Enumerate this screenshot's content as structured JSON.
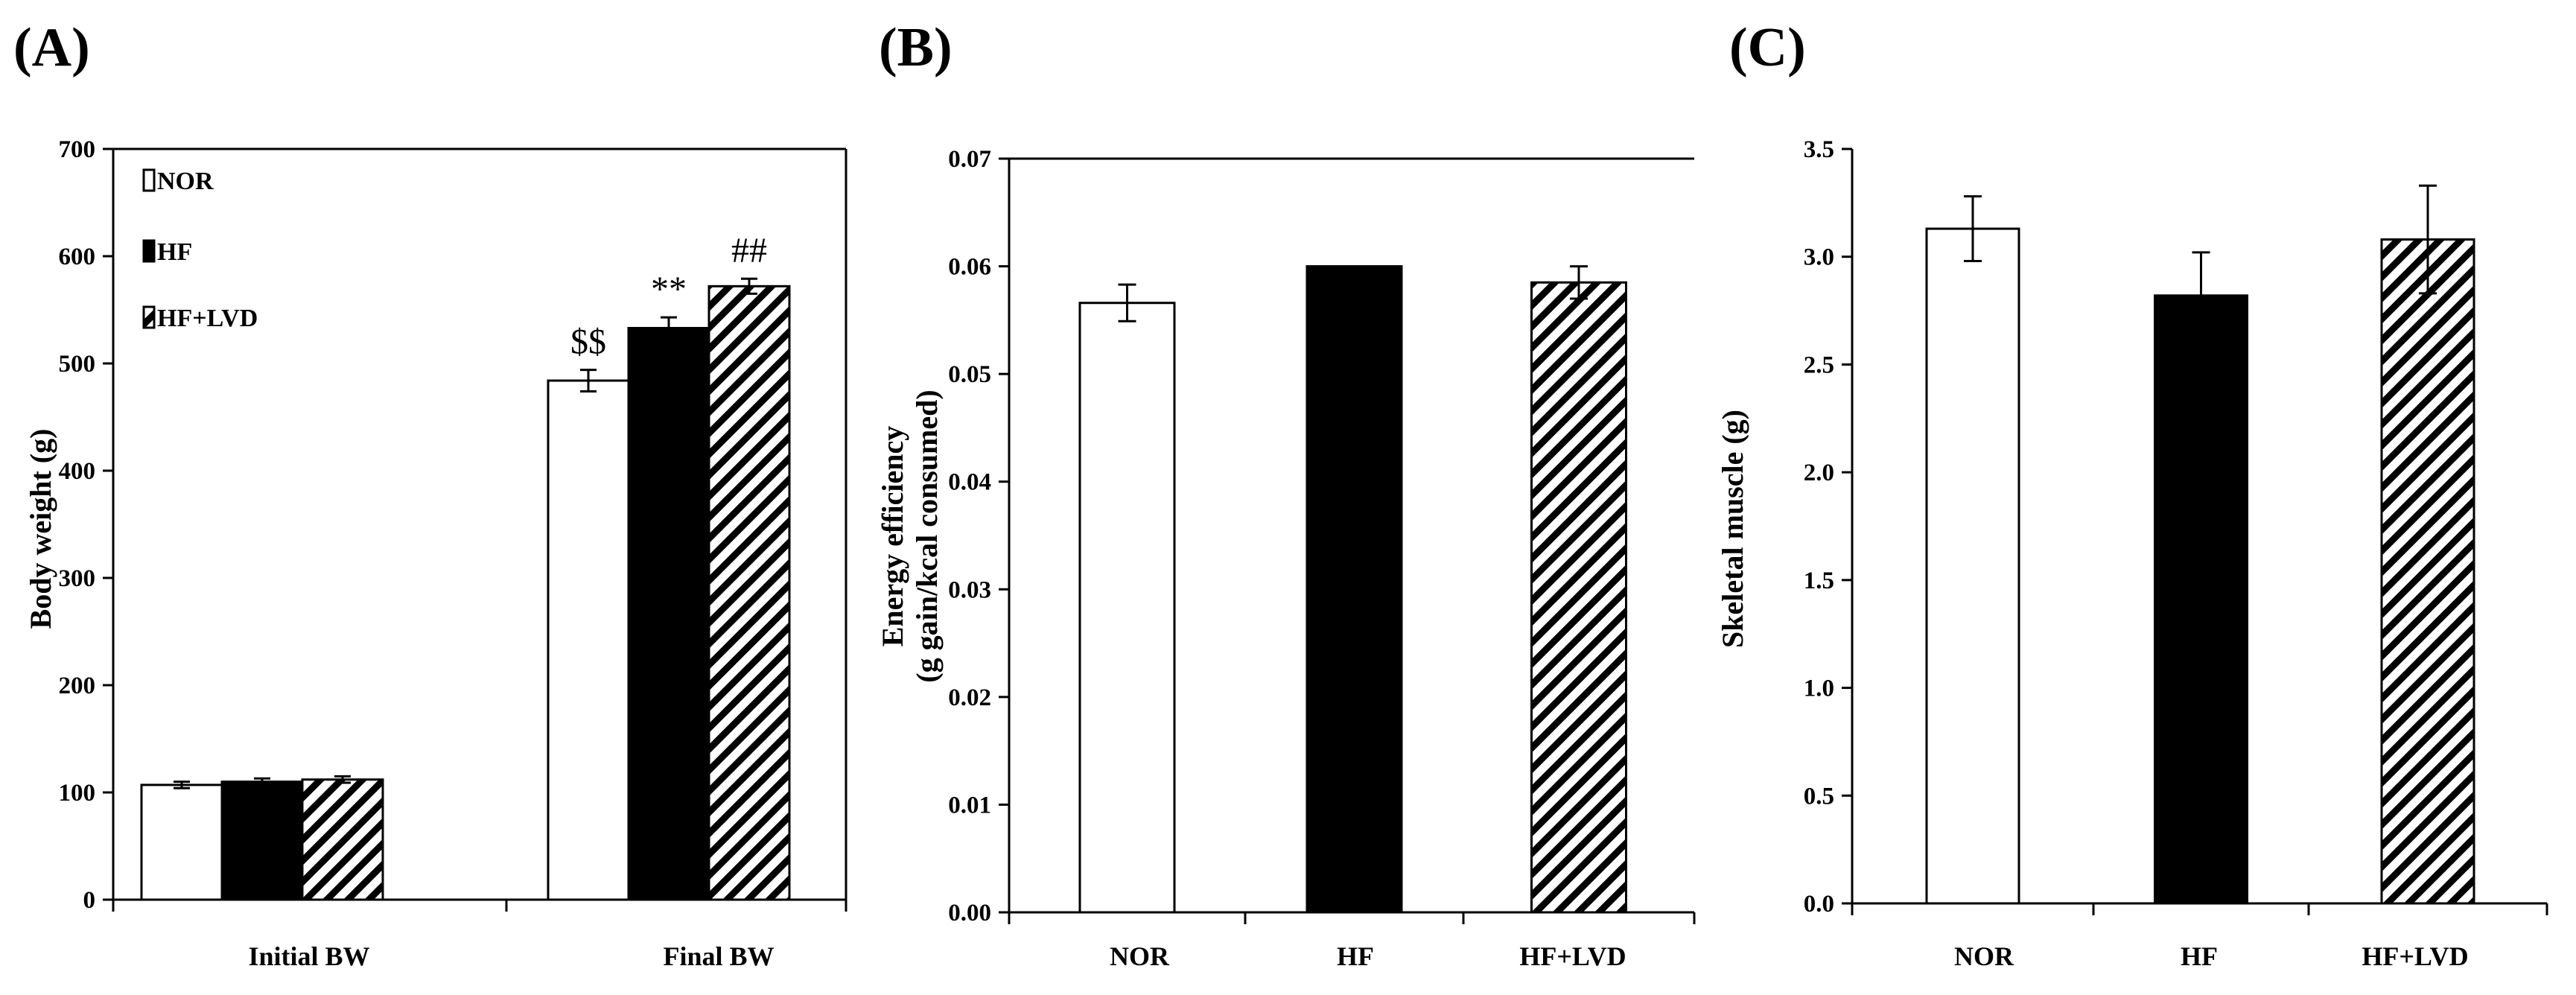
{
  "chart_data": [
    {
      "panel": "(A)",
      "type": "bar",
      "categories": [
        "Initial BW",
        "Final BW"
      ],
      "ylabel": "Body weight (g)",
      "ylim": [
        0,
        700
      ],
      "yticks": [
        "0",
        "100",
        "200",
        "300",
        "400",
        "500",
        "600",
        "700"
      ],
      "legend": {
        "placement": "top-left",
        "entries": [
          "NOR",
          "HF",
          "HF+LVD"
        ]
      },
      "series": [
        {
          "name": "NOR",
          "pattern": "white",
          "values": [
            107,
            484
          ],
          "errors": [
            3,
            10
          ],
          "annotations": [
            "",
            "$$"
          ]
        },
        {
          "name": "HF",
          "pattern": "black",
          "values": [
            110,
            533
          ],
          "errors": [
            3,
            10
          ],
          "annotations": [
            "",
            "**"
          ]
        },
        {
          "name": "HF+LVD",
          "pattern": "hatched",
          "values": [
            112,
            572
          ],
          "errors": [
            3,
            7
          ],
          "annotations": [
            "",
            "##"
          ]
        }
      ]
    },
    {
      "panel": "(B)",
      "type": "bar",
      "categories": [
        "NOR",
        "HF",
        "HF+LVD"
      ],
      "ylabel": "Energy efficiency",
      "ylabel2": "(g gain/kcal consumed)",
      "ylim": [
        0,
        0.07
      ],
      "yticks": [
        "0.00",
        "0.01",
        "0.02",
        "0.03",
        "0.04",
        "0.05",
        "0.06",
        "0.07"
      ],
      "values": [
        0.0566,
        0.06,
        0.0585
      ],
      "errors": [
        0.0017,
        0,
        0.0015
      ],
      "patterns": [
        "white",
        "black",
        "hatched"
      ]
    },
    {
      "panel": "(C)",
      "type": "bar",
      "categories": [
        "NOR",
        "HF",
        "HF+LVD"
      ],
      "ylabel": "Skeletal muscle (g)",
      "ylim": [
        0,
        3.5
      ],
      "yticks": [
        "0.0",
        "0.5",
        "1.0",
        "1.5",
        "2.0",
        "2.5",
        "3.0",
        "3.5"
      ],
      "values": [
        3.13,
        2.82,
        3.08
      ],
      "errors": [
        0.15,
        0.2,
        0.25
      ],
      "patterns": [
        "white",
        "black",
        "hatched"
      ]
    }
  ]
}
